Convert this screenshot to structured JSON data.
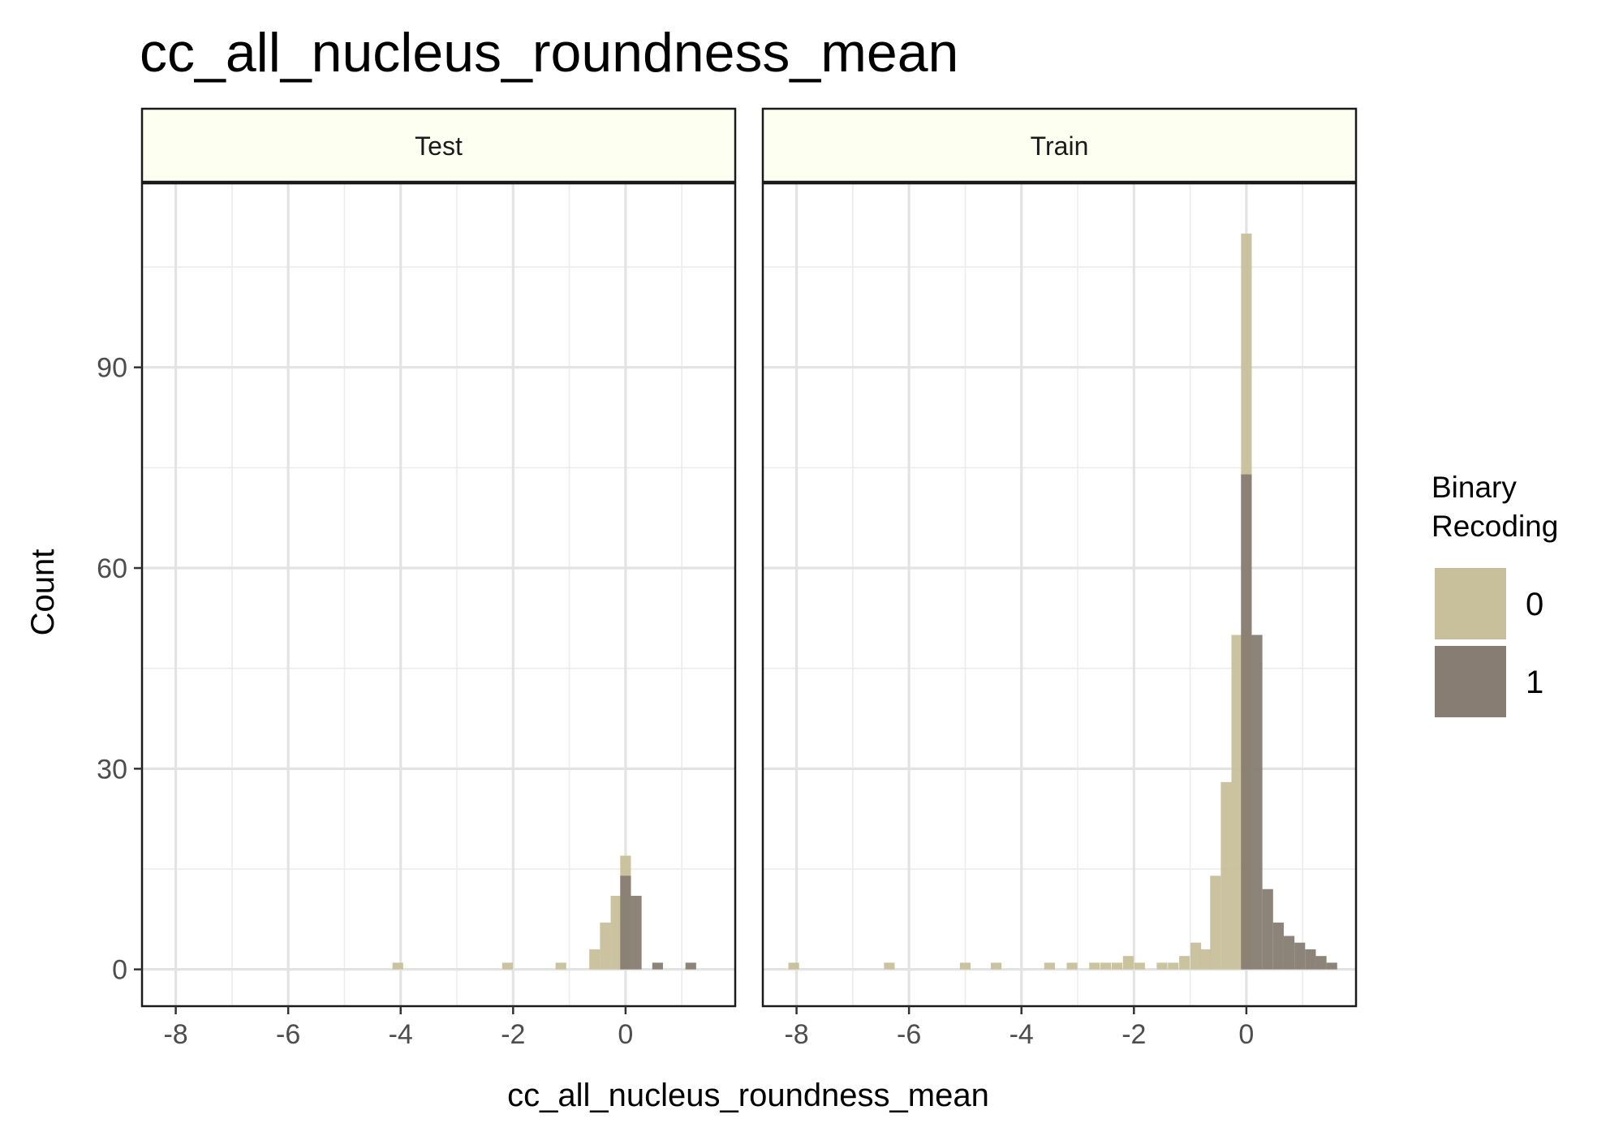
{
  "chart_data": {
    "type": "bar",
    "title": "cc_all_nucleus_roundness_mean",
    "xlabel": "cc_all_nucleus_roundness_mean",
    "ylabel": "Count",
    "xlim": [
      -8.6,
      1.95
    ],
    "ylim": [
      -5.5,
      117.5
    ],
    "x_ticks": [
      -8,
      -6,
      -4,
      -2,
      0
    ],
    "x_tick_labels": [
      "-8",
      "-6",
      "-4",
      "-2",
      "0"
    ],
    "y_ticks": [
      0,
      30,
      60,
      90
    ],
    "y_tick_labels": [
      "0",
      "30",
      "60",
      "90"
    ],
    "grid": true,
    "bin_width": 0.19,
    "legend": {
      "title": "Binary\nRecoding",
      "position": "right",
      "entries": [
        {
          "label": "0",
          "color": "#c8c09a"
        },
        {
          "label": "1",
          "color": "#877d72"
        }
      ]
    },
    "panels": [
      {
        "label": "Test",
        "series": [
          {
            "name": "0",
            "color": "#c8c09a",
            "bins": [
              {
                "x": -4.05,
                "count": 1
              },
              {
                "x": -2.1,
                "count": 1
              },
              {
                "x": -1.15,
                "count": 1
              },
              {
                "x": -0.55,
                "count": 3
              },
              {
                "x": -0.36,
                "count": 7
              },
              {
                "x": -0.17,
                "count": 11
              },
              {
                "x": 0.0,
                "count": 17
              }
            ]
          },
          {
            "name": "1",
            "color": "#877d72",
            "bins": [
              {
                "x": 0.0,
                "count": 14
              },
              {
                "x": 0.19,
                "count": 11
              },
              {
                "x": 0.57,
                "count": 1
              },
              {
                "x": 1.16,
                "count": 1
              }
            ]
          }
        ]
      },
      {
        "label": "Train",
        "series": [
          {
            "name": "0",
            "color": "#c8c09a",
            "bins": [
              {
                "x": -8.05,
                "count": 1
              },
              {
                "x": -6.35,
                "count": 1
              },
              {
                "x": -5.0,
                "count": 1
              },
              {
                "x": -4.45,
                "count": 1
              },
              {
                "x": -3.5,
                "count": 1
              },
              {
                "x": -3.1,
                "count": 1
              },
              {
                "x": -2.7,
                "count": 1
              },
              {
                "x": -2.5,
                "count": 1
              },
              {
                "x": -2.3,
                "count": 1
              },
              {
                "x": -2.1,
                "count": 2
              },
              {
                "x": -1.9,
                "count": 1
              },
              {
                "x": -1.5,
                "count": 1
              },
              {
                "x": -1.3,
                "count": 1
              },
              {
                "x": -1.1,
                "count": 2
              },
              {
                "x": -0.9,
                "count": 4
              },
              {
                "x": -0.72,
                "count": 3
              },
              {
                "x": -0.55,
                "count": 14
              },
              {
                "x": -0.36,
                "count": 28
              },
              {
                "x": -0.17,
                "count": 50
              },
              {
                "x": 0.0,
                "count": 110
              }
            ]
          },
          {
            "name": "1",
            "color": "#877d72",
            "bins": [
              {
                "x": 0.0,
                "count": 74
              },
              {
                "x": 0.19,
                "count": 50
              },
              {
                "x": 0.38,
                "count": 12
              },
              {
                "x": 0.57,
                "count": 7
              },
              {
                "x": 0.76,
                "count": 5
              },
              {
                "x": 0.95,
                "count": 4
              },
              {
                "x": 1.14,
                "count": 3
              },
              {
                "x": 1.33,
                "count": 2
              },
              {
                "x": 1.52,
                "count": 1
              }
            ]
          }
        ]
      }
    ]
  }
}
